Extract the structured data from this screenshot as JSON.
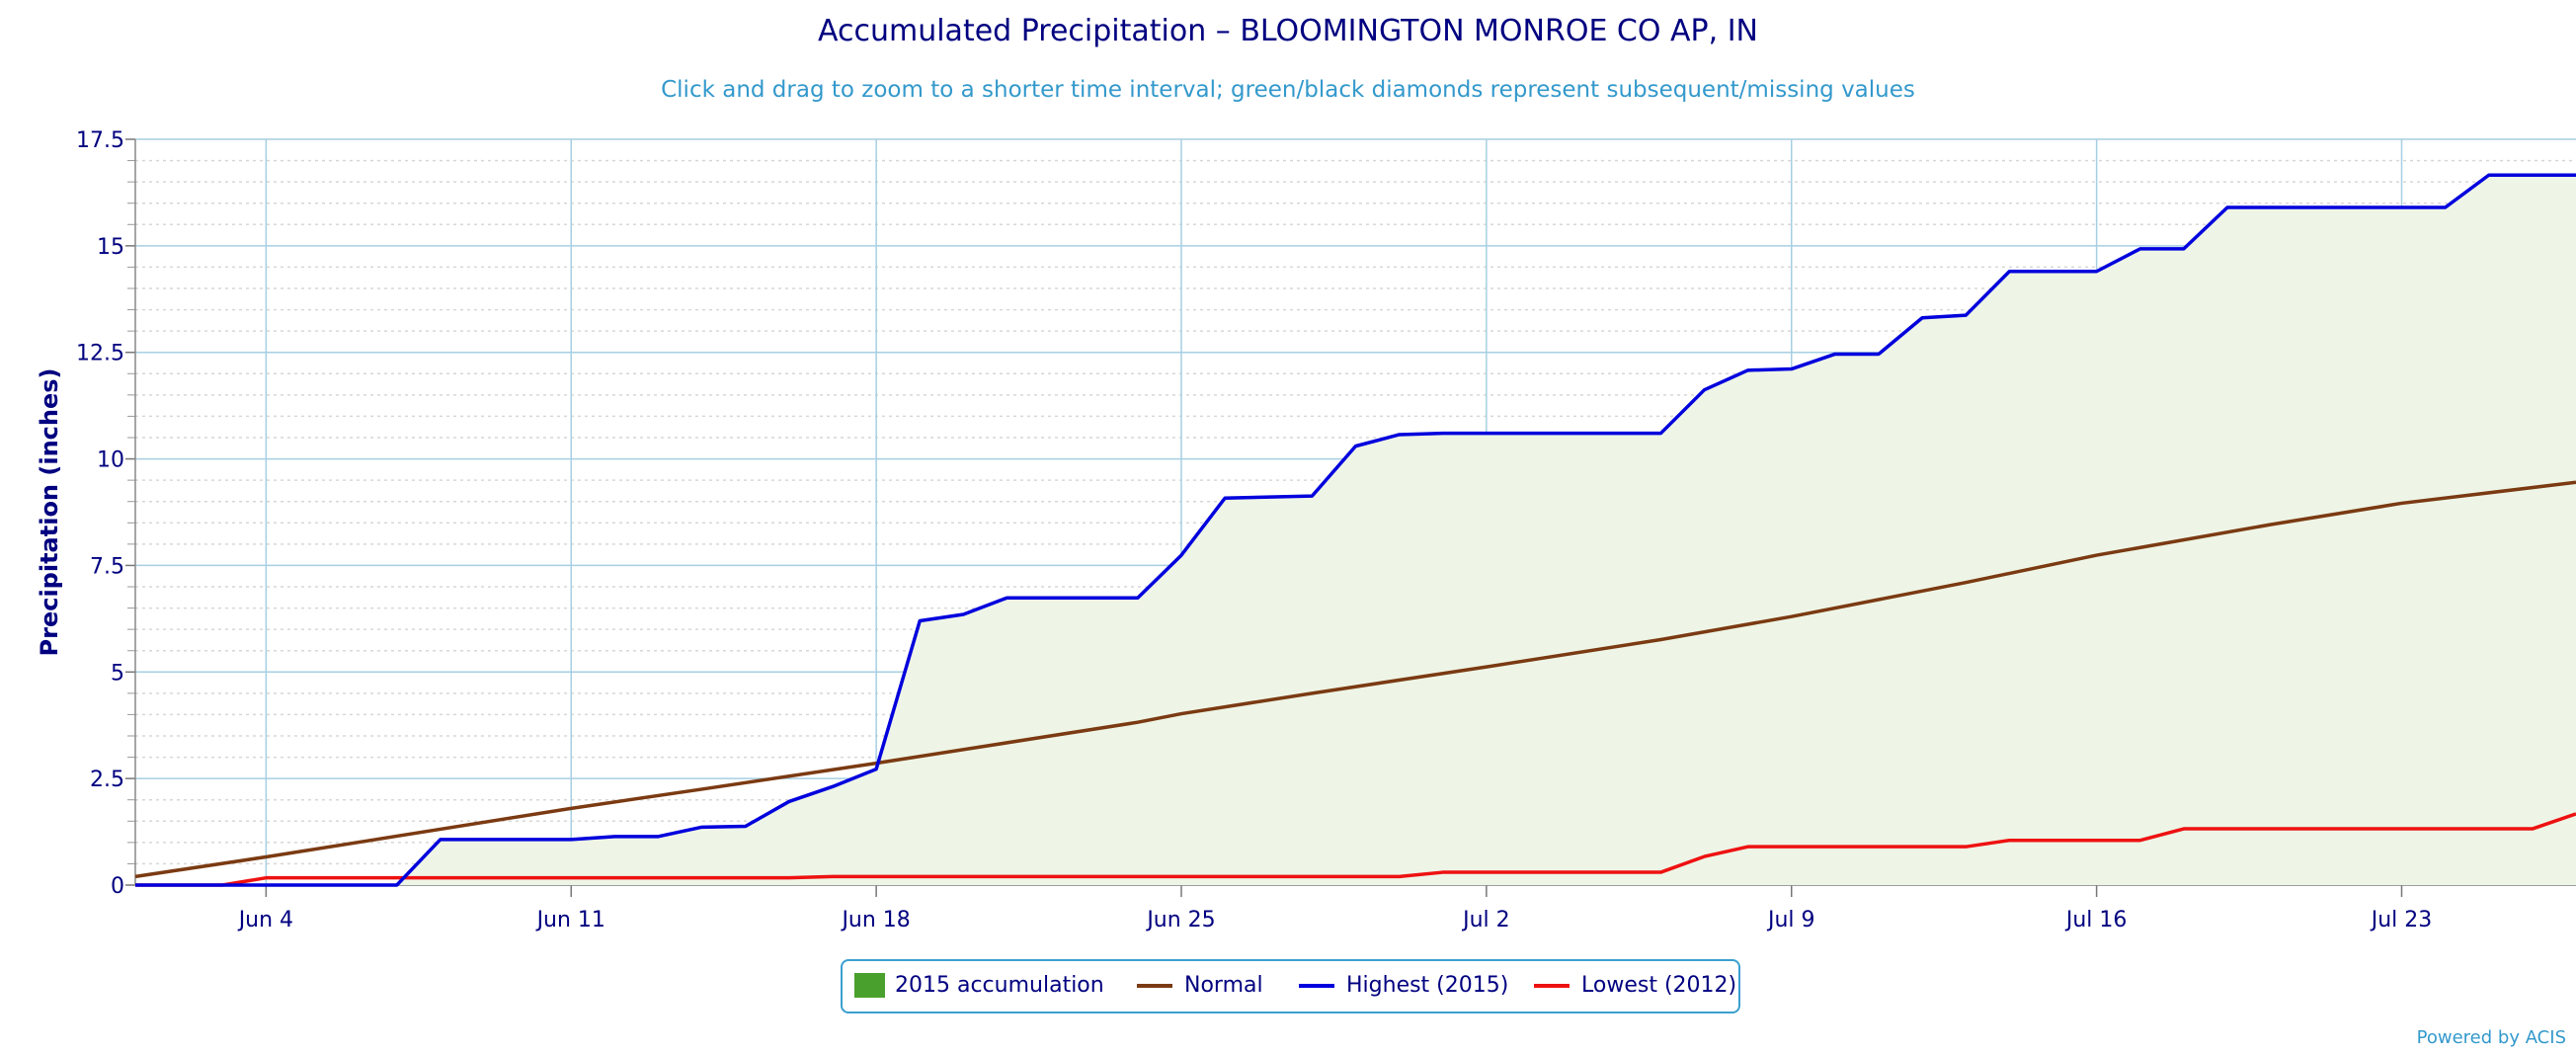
{
  "colors": {
    "accumulation_fill": "#4aa02c",
    "accumulation_area": "#eef5e6",
    "normal": "#7b3a12",
    "highest": "#0000dd",
    "lowest": "#ee1111",
    "grid_major": "#a6cfe3",
    "grid_minor": "#d7d7d7",
    "axis_text": "#000080",
    "accent": "#3399cc"
  },
  "chart_data": {
    "type": "line",
    "title": "Accumulated Precipitation – BLOOMINGTON MONROE CO AP, IN",
    "subtitle": "Click and drag to zoom to a shorter time interval; green/black diamonds represent subsequent/missing values",
    "ylabel": "Precipitation (inches)",
    "xlabel": "",
    "ylim": [
      0,
      17.5
    ],
    "yticks": [
      0,
      2.5,
      5,
      7.5,
      10,
      12.5,
      15,
      17.5
    ],
    "ytick_labels": [
      "0",
      "2.5",
      "5",
      "7.5",
      "10",
      "12.5",
      "15",
      "17.5"
    ],
    "x_start": "2015-06-01",
    "x_end": "2015-07-27",
    "xticks": [
      "2015-06-04",
      "2015-06-11",
      "2015-06-18",
      "2015-06-25",
      "2015-07-02",
      "2015-07-09",
      "2015-07-16",
      "2015-07-23"
    ],
    "xtick_labels": [
      "Jun 4",
      "Jun 11",
      "Jun 18",
      "Jun 25",
      "Jul 2",
      "Jul 9",
      "Jul 16",
      "Jul 23"
    ],
    "grid": true,
    "legend_position": "bottom-center",
    "series": [
      {
        "name": "2015 accumulation",
        "kind": "area",
        "dates": [
          "2015-06-01",
          "2015-06-03",
          "2015-06-04",
          "2015-06-07",
          "2015-06-08",
          "2015-06-11",
          "2015-06-12",
          "2015-06-13",
          "2015-06-14",
          "2015-06-15",
          "2015-06-16",
          "2015-06-17",
          "2015-06-18",
          "2015-06-19",
          "2015-06-20",
          "2015-06-21",
          "2015-06-22",
          "2015-06-24",
          "2015-06-25",
          "2015-06-26",
          "2015-06-28",
          "2015-06-29",
          "2015-06-30",
          "2015-07-01",
          "2015-07-06",
          "2015-07-07",
          "2015-07-08",
          "2015-07-09",
          "2015-07-10",
          "2015-07-11",
          "2015-07-12",
          "2015-07-13",
          "2015-07-14",
          "2015-07-16",
          "2015-07-17",
          "2015-07-18",
          "2015-07-19",
          "2015-07-21",
          "2015-07-24",
          "2015-07-25",
          "2015-07-27"
        ],
        "values": [
          0,
          0,
          0,
          0,
          1.07,
          1.07,
          1.14,
          1.14,
          1.36,
          1.38,
          1.96,
          2.31,
          2.72,
          6.2,
          6.35,
          6.74,
          6.74,
          6.74,
          7.74,
          9.08,
          9.13,
          10.3,
          10.57,
          10.6,
          10.6,
          11.62,
          12.08,
          12.11,
          12.46,
          12.46,
          13.31,
          13.37,
          14.4,
          14.4,
          14.93,
          14.93,
          15.9,
          15.9,
          15.9,
          16.66,
          16.66
        ]
      },
      {
        "name": "Normal",
        "kind": "line",
        "dates": [
          "2015-06-01",
          "2015-06-04",
          "2015-06-11",
          "2015-06-14",
          "2015-06-18",
          "2015-06-24",
          "2015-06-25",
          "2015-06-28",
          "2015-07-02",
          "2015-07-06",
          "2015-07-09",
          "2015-07-13",
          "2015-07-16",
          "2015-07-20",
          "2015-07-23",
          "2015-07-27"
        ],
        "values": [
          0.2,
          0.66,
          1.8,
          2.25,
          2.86,
          3.82,
          4.02,
          4.5,
          5.12,
          5.76,
          6.3,
          7.1,
          7.74,
          8.46,
          8.96,
          9.45
        ]
      },
      {
        "name": "Highest (2015)",
        "kind": "line",
        "dates": [
          "2015-06-01",
          "2015-06-03",
          "2015-06-04",
          "2015-06-07",
          "2015-06-08",
          "2015-06-11",
          "2015-06-12",
          "2015-06-13",
          "2015-06-14",
          "2015-06-15",
          "2015-06-16",
          "2015-06-17",
          "2015-06-18",
          "2015-06-19",
          "2015-06-20",
          "2015-06-21",
          "2015-06-22",
          "2015-06-24",
          "2015-06-25",
          "2015-06-26",
          "2015-06-28",
          "2015-06-29",
          "2015-06-30",
          "2015-07-01",
          "2015-07-06",
          "2015-07-07",
          "2015-07-08",
          "2015-07-09",
          "2015-07-10",
          "2015-07-11",
          "2015-07-12",
          "2015-07-13",
          "2015-07-14",
          "2015-07-16",
          "2015-07-17",
          "2015-07-18",
          "2015-07-19",
          "2015-07-21",
          "2015-07-24",
          "2015-07-25",
          "2015-07-27"
        ],
        "values": [
          0,
          0,
          0,
          0,
          1.07,
          1.07,
          1.14,
          1.14,
          1.36,
          1.38,
          1.96,
          2.31,
          2.72,
          6.2,
          6.35,
          6.74,
          6.74,
          6.74,
          7.74,
          9.08,
          9.13,
          10.3,
          10.57,
          10.6,
          10.6,
          11.62,
          12.08,
          12.11,
          12.46,
          12.46,
          13.31,
          13.37,
          14.4,
          14.4,
          14.93,
          14.93,
          15.9,
          15.9,
          15.9,
          16.66,
          16.66
        ]
      },
      {
        "name": "Lowest (2012)",
        "kind": "line",
        "dates": [
          "2015-06-01",
          "2015-06-03",
          "2015-06-04",
          "2015-06-16",
          "2015-06-17",
          "2015-06-30",
          "2015-07-01",
          "2015-07-06",
          "2015-07-07",
          "2015-07-08",
          "2015-07-13",
          "2015-07-14",
          "2015-07-17",
          "2015-07-18",
          "2015-07-26",
          "2015-07-27"
        ],
        "values": [
          0,
          0,
          0.17,
          0.17,
          0.2,
          0.2,
          0.3,
          0.3,
          0.67,
          0.9,
          0.9,
          1.05,
          1.05,
          1.32,
          1.32,
          1.67
        ]
      }
    ]
  },
  "legend": {
    "items": [
      "2015 accumulation",
      "Normal",
      "Highest (2015)",
      "Lowest (2012)"
    ]
  },
  "credit": "Powered by ACIS"
}
